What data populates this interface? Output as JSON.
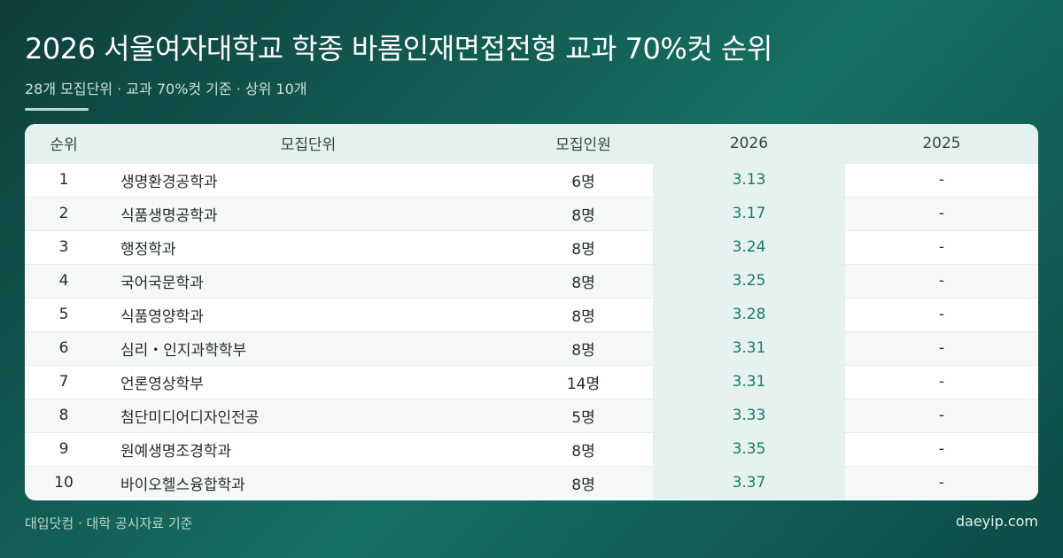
{
  "header": {
    "title": "2026 서울여자대학교 학종 바롬인재면접전형 교과 70%컷 순위",
    "subtitle": "28개 모집단위 · 교과 70%컷 기준 · 상위 10개"
  },
  "colors": {
    "accent": "#177a6a",
    "background": "#157062",
    "highlight_column": "#e6f2ef"
  },
  "table": {
    "headers": {
      "rank": "순위",
      "name": "모집단위",
      "quota": "모집인원",
      "y2026": "2026",
      "y2025": "2025"
    },
    "rows": [
      {
        "rank": "1",
        "name": "생명환경공학과",
        "quota": "6명",
        "y2026": "3.13",
        "y2025": "-"
      },
      {
        "rank": "2",
        "name": "식품생명공학과",
        "quota": "8명",
        "y2026": "3.17",
        "y2025": "-"
      },
      {
        "rank": "3",
        "name": "행정학과",
        "quota": "8명",
        "y2026": "3.24",
        "y2025": "-"
      },
      {
        "rank": "4",
        "name": "국어국문학과",
        "quota": "8명",
        "y2026": "3.25",
        "y2025": "-"
      },
      {
        "rank": "5",
        "name": "식품영양학과",
        "quota": "8명",
        "y2026": "3.28",
        "y2025": "-"
      },
      {
        "rank": "6",
        "name": "심리・인지과학학부",
        "quota": "8명",
        "y2026": "3.31",
        "y2025": "-"
      },
      {
        "rank": "7",
        "name": "언론영상학부",
        "quota": "14명",
        "y2026": "3.31",
        "y2025": "-"
      },
      {
        "rank": "8",
        "name": "첨단미디어디자인전공",
        "quota": "5명",
        "y2026": "3.33",
        "y2025": "-"
      },
      {
        "rank": "9",
        "name": "원예생명조경학과",
        "quota": "8명",
        "y2026": "3.35",
        "y2025": "-"
      },
      {
        "rank": "10",
        "name": "바이오헬스융합학과",
        "quota": "8명",
        "y2026": "3.37",
        "y2025": "-"
      }
    ]
  },
  "footer": {
    "source": "대입닷컴 · 대학 공시자료 기준",
    "site": "daeyip.com"
  }
}
